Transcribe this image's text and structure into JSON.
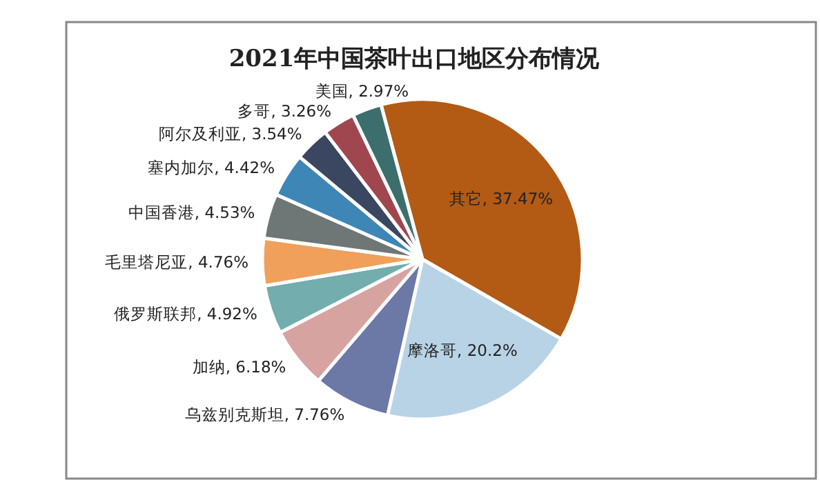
{
  "chart_data": {
    "type": "pie",
    "title": "2021年中国茶叶出口地区分布情况",
    "categories": [
      "其它",
      "摩洛哥",
      "乌兹别克斯坦",
      "加纳",
      "俄罗斯联邦",
      "毛里塔尼亚",
      "中国香港",
      "塞内加尔",
      "阿尔及利亚",
      "多哥",
      "美国"
    ],
    "values": [
      37.47,
      20.2,
      7.76,
      6.18,
      4.92,
      4.76,
      4.53,
      4.42,
      3.54,
      3.26,
      2.97
    ],
    "value_labels": [
      ", 37.47%",
      ", 20.2%",
      ", 7.76%",
      ", 6.18%",
      ", 4.92%",
      ", 4.76%",
      ", 4.53%",
      ", 4.42%",
      ", 3.54%",
      ", 3.26%",
      ", 2.97%"
    ],
    "colors": [
      "#b35a14",
      "#b8d3e6",
      "#6c78a6",
      "#d6a3a0",
      "#73adad",
      "#f0a05a",
      "#6e7676",
      "#3e86b6",
      "#3b4660",
      "#a0464e",
      "#3d6e6e"
    ]
  }
}
